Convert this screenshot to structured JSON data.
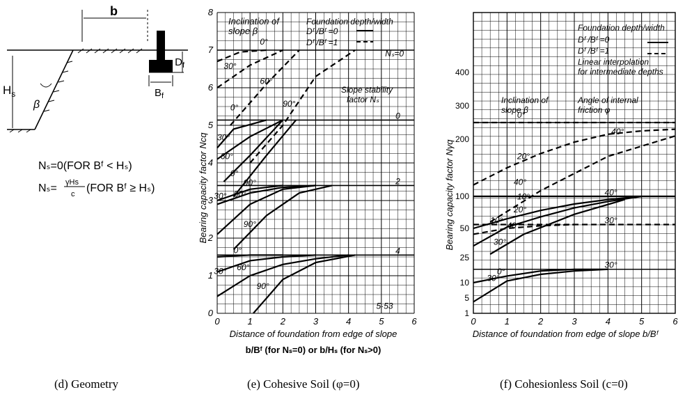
{
  "geometry": {
    "caption": "(d) Geometry",
    "b": "b",
    "hs": "H",
    "hs_sub": "s",
    "beta": "β",
    "df": "D",
    "df_sub": "f",
    "bf": "B",
    "bf_sub": "f",
    "eq1": "Nₛ=0(FOR Bᶠ < Hₛ)",
    "eq2_lhs": "Nₛ=",
    "eq2_num": "γHs",
    "eq2_den": "c",
    "eq2_rhs": "(FOR Bᶠ ≥ Hₛ)"
  },
  "chart_e": {
    "caption": "(e) Cohesive Soil (φ=0)",
    "ylabel": "Bearing capacity factor Nсq",
    "xlabel": "Distance of foundation from edge of slope",
    "xlabel2": "b/Bᶠ (for Nₛ=0)  or  b/Hₛ (for Nₛ>0)",
    "legend_incl": [
      "Inclination of",
      "slope β"
    ],
    "legend_depth": "Foundation depth/width",
    "legend_d0": "Dᶠ /Bᶠ =0",
    "legend_d1": "Dᶠ /Bᶠ =1",
    "slope_stab": [
      "Slope stability",
      "factor Nₛ"
    ],
    "ns_labels": [
      "0",
      "2",
      "4",
      "5·53",
      "Nₛ=0"
    ],
    "angle_labels": [
      "0°",
      "30°",
      "60°",
      "90°",
      "0°",
      "30°",
      "60°",
      "90°",
      "0°",
      "30°",
      "60°",
      "90°",
      "0°",
      "30°",
      "60°",
      "90°"
    ],
    "x_ticks": [
      "0",
      "1",
      "2",
      "3",
      "4",
      "5",
      "6"
    ],
    "y_ticks": [
      "0",
      "1",
      "2",
      "3",
      "4",
      "5",
      "6",
      "7",
      "8"
    ]
  },
  "chart_f": {
    "caption": "(f) Cohesionless Soil (c=0)",
    "ylabel": "Bearing capacity factor Nγq",
    "xlabel": "Distance of foundation from edge of slope b/Bᶠ",
    "legend_depth": "Foundation depth/width",
    "legend_d0": "Dᶠ /Bᶠ =0",
    "legend_d1": "Dᶠ /Bᶠ =1",
    "legend_lin": [
      "Linear interpolation",
      "for intermediate depths"
    ],
    "legend_incl": [
      "Inclination of",
      "slope β"
    ],
    "legend_phi": [
      "Angle of internal",
      "friction φ"
    ],
    "angle_labels": [
      "0°",
      "20°",
      "40°",
      "40°",
      "10°",
      "20°",
      "10°",
      "30°",
      "40°",
      "40°",
      "30°",
      "0°",
      "30°",
      "30°"
    ],
    "x_ticks": [
      "0",
      "1",
      "2",
      "3",
      "4",
      "5",
      "6"
    ],
    "y_ticks": [
      "1",
      "5",
      "10",
      "25",
      "50",
      "100",
      "200",
      "300",
      "400"
    ]
  },
  "chart_data": [
    {
      "type": "line",
      "title": "(e) Cohesive Soil (φ=0)",
      "xlabel": "b/Bᶠ (for Nₛ=0) or b/Hₛ (for Nₛ>0)",
      "ylabel": "Bearing capacity factor Nсq",
      "xlim": [
        0,
        6
      ],
      "ylim": [
        0,
        8
      ],
      "grid": true,
      "series": [
        {
          "group": "Ns=0",
          "beta": "0°",
          "depth": "Df/Bf=1",
          "x": [
            0,
            0.7,
            1.5
          ],
          "y": [
            6.7,
            6.95,
            7.0
          ]
        },
        {
          "group": "Ns=0",
          "beta": "30°",
          "depth": "Df/Bf=1",
          "x": [
            0,
            1,
            2
          ],
          "y": [
            6.0,
            6.6,
            7.0
          ]
        },
        {
          "group": "Ns=0",
          "beta": "60°",
          "depth": "Df/Bf=1",
          "x": [
            0.4,
            1.5,
            2.5
          ],
          "y": [
            5.0,
            6.1,
            7.0
          ]
        },
        {
          "group": "Ns=0",
          "beta": "90°",
          "depth": "Df/Bf=1",
          "x": [
            1,
            2,
            3,
            4.2
          ],
          "y": [
            4.0,
            5.0,
            6.3,
            7.0
          ]
        },
        {
          "group": "Ns=0",
          "beta": "0°",
          "depth": "Df/Bf=0",
          "x": [
            0,
            0.5,
            1.5
          ],
          "y": [
            4.4,
            4.9,
            5.14
          ]
        },
        {
          "group": "Ns=0",
          "beta": "30°",
          "depth": "Df/Bf=0",
          "x": [
            0,
            1,
            2
          ],
          "y": [
            4.1,
            4.7,
            5.14
          ]
        },
        {
          "group": "Ns=0",
          "beta": "60°",
          "depth": "Df/Bf=0",
          "x": [
            0.2,
            1,
            2
          ],
          "y": [
            3.5,
            4.2,
            5.14
          ]
        },
        {
          "group": "Ns=0",
          "beta": "90°",
          "depth": "Df/Bf=0",
          "x": [
            0.5,
            1.5,
            2.4
          ],
          "y": [
            3.1,
            4.2,
            5.14
          ]
        },
        {
          "group": "Ns=2",
          "beta": "0°",
          "depth": "Df/Bf=0",
          "x": [
            0,
            1,
            2
          ],
          "y": [
            3.0,
            3.3,
            3.4
          ]
        },
        {
          "group": "Ns=2",
          "beta": "30°",
          "depth": "Df/Bf=0",
          "x": [
            0,
            1,
            2,
            3
          ],
          "y": [
            2.9,
            3.2,
            3.35,
            3.4
          ]
        },
        {
          "group": "Ns=2",
          "beta": "60°",
          "depth": "Df/Bf=0",
          "x": [
            0,
            1,
            2,
            3
          ],
          "y": [
            2.1,
            2.9,
            3.3,
            3.4
          ]
        },
        {
          "group": "Ns=2",
          "beta": "90°",
          "depth": "Df/Bf=0",
          "x": [
            0.5,
            1.5,
            2.5,
            3.5
          ],
          "y": [
            1.7,
            2.6,
            3.2,
            3.4
          ]
        },
        {
          "group": "Ns=4",
          "beta": "0°",
          "depth": "Df/Bf=0",
          "x": [
            0,
            1,
            2
          ],
          "y": [
            1.5,
            1.55,
            1.55
          ]
        },
        {
          "group": "Ns=4",
          "beta": "30°",
          "depth": "Df/Bf=0",
          "x": [
            0,
            1,
            2,
            3
          ],
          "y": [
            1.1,
            1.4,
            1.5,
            1.55
          ]
        },
        {
          "group": "Ns=4",
          "beta": "60°",
          "depth": "Df/Bf=0",
          "x": [
            0,
            1,
            2,
            3,
            4
          ],
          "y": [
            0.45,
            1.0,
            1.3,
            1.45,
            1.55
          ]
        },
        {
          "group": "Ns=4",
          "beta": "90°",
          "depth": "Df/Bf=0",
          "x": [
            1.1,
            2,
            3,
            4.2
          ],
          "y": [
            0.0,
            0.9,
            1.35,
            1.55
          ]
        }
      ]
    },
    {
      "type": "line",
      "title": "(f) Cohesionless Soil (c=0)",
      "xlabel": "Distance of foundation from edge of slope b/Bᶠ",
      "ylabel": "Bearing capacity factor Nγq",
      "xlim": [
        0,
        6
      ],
      "ylim": [
        1,
        400
      ],
      "y_scale": "log-like",
      "grid": true,
      "series": [
        {
          "phi": "40°",
          "beta": "0°",
          "depth": "Df/Bf=1",
          "x": [
            0,
            3,
            6
          ],
          "y": [
            250,
            250,
            250
          ]
        },
        {
          "phi": "40°",
          "beta": "20°",
          "depth": "Df/Bf=1",
          "x": [
            0,
            1,
            2,
            3,
            4,
            5,
            6
          ],
          "y": [
            120,
            150,
            175,
            195,
            215,
            225,
            230
          ]
        },
        {
          "phi": "40°",
          "beta": "40°",
          "depth": "Df/Bf=1",
          "x": [
            0.5,
            2,
            4,
            6
          ],
          "y": [
            60,
            110,
            170,
            210
          ]
        },
        {
          "phi": "40°",
          "beta": "0°",
          "depth": "Df/Bf=0",
          "x": [
            0,
            3,
            6
          ],
          "y": [
            100,
            100,
            100
          ]
        },
        {
          "phi": "40°",
          "beta": "10°",
          "depth": "Df/Bf=0",
          "x": [
            0,
            1,
            2,
            3,
            4,
            5
          ],
          "y": [
            50,
            65,
            78,
            88,
            95,
            100
          ]
        },
        {
          "phi": "40°",
          "beta": "20°",
          "depth": "Df/Bf=0",
          "x": [
            0,
            1,
            2,
            3,
            4,
            5
          ],
          "y": [
            35,
            52,
            68,
            82,
            92,
            100
          ]
        },
        {
          "phi": "40°",
          "beta": "30°",
          "depth": "Df/Bf=0",
          "x": [
            0.5,
            1.5,
            3,
            4.5
          ],
          "y": [
            28,
            45,
            72,
            95
          ]
        },
        {
          "phi": "30°",
          "beta": "0°",
          "depth": "Df/Bf=1",
          "x": [
            0,
            3,
            6
          ],
          "y": [
            56,
            56,
            56
          ]
        },
        {
          "phi": "30°",
          "beta": "10°",
          "depth": "Df/Bf=1",
          "x": [
            0,
            1,
            2,
            3
          ],
          "y": [
            45,
            50,
            54,
            56
          ]
        },
        {
          "phi": "30°",
          "beta": "0°",
          "depth": "Df/Bf=0",
          "x": [
            0,
            1,
            2,
            3,
            4
          ],
          "y": [
            10,
            14,
            17,
            18,
            18
          ]
        },
        {
          "phi": "30°",
          "beta": "30°",
          "depth": "Df/Bf=0",
          "x": [
            0,
            1,
            2,
            3,
            4
          ],
          "y": [
            4,
            11,
            15,
            17,
            18
          ]
        }
      ]
    }
  ]
}
